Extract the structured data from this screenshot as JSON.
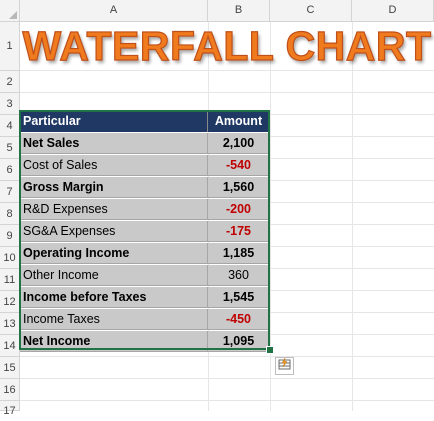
{
  "spreadsheet": {
    "columns": [
      "A",
      "B",
      "C",
      "D"
    ],
    "rows": [
      "1",
      "2",
      "3",
      "4",
      "5",
      "6",
      "7",
      "8",
      "9",
      "10",
      "11",
      "12",
      "13",
      "14",
      "15",
      "16",
      "17"
    ]
  },
  "title": "WATERFALL CHART",
  "table": {
    "header": {
      "particular": "Particular",
      "amount": "Amount",
      "header_color": "#1f3864"
    },
    "rows": [
      {
        "particular": "Net Sales",
        "amount": "2,100",
        "bold": true,
        "negative": false
      },
      {
        "particular": "Cost of Sales",
        "amount": "-540",
        "bold": false,
        "negative": true
      },
      {
        "particular": "Gross Margin",
        "amount": "1,560",
        "bold": true,
        "negative": false
      },
      {
        "particular": "R&D Expenses",
        "amount": "-200",
        "bold": false,
        "negative": true
      },
      {
        "particular": "SG&A Expenses",
        "amount": "-175",
        "bold": false,
        "negative": true
      },
      {
        "particular": "Operating Income",
        "amount": "1,185",
        "bold": true,
        "negative": false
      },
      {
        "particular": "Other Income",
        "amount": "360",
        "bold": false,
        "negative": false
      },
      {
        "particular": "Income before Taxes",
        "amount": "1,545",
        "bold": true,
        "negative": false
      },
      {
        "particular": "Income Taxes",
        "amount": "-450",
        "bold": false,
        "negative": true
      },
      {
        "particular": "Net Income",
        "amount": "1,095",
        "bold": true,
        "negative": false
      }
    ]
  },
  "colors": {
    "title_fill": "#f07a1e",
    "negative_text": "#c00000",
    "selection": "#217346",
    "cell_fill": "#c9c9c9"
  },
  "quick_analysis_icon": "quick-analysis-icon"
}
